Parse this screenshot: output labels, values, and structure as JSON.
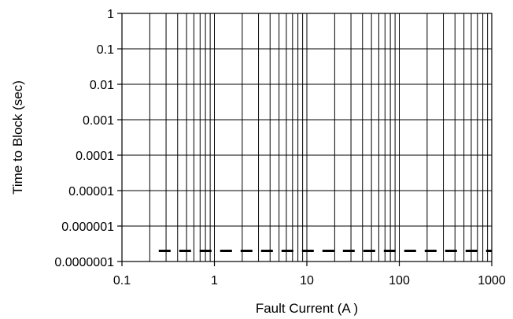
{
  "chart_data": {
    "type": "line",
    "xlabel": "Fault Current (A )",
    "ylabel": "Time to Block (sec)",
    "x_scale": "log",
    "y_scale": "log",
    "xlim": [
      0.1,
      1000
    ],
    "ylim": [
      1e-07,
      1
    ],
    "grid": true,
    "x_ticks": [
      "0.1",
      "1",
      "10",
      "100",
      "1000"
    ],
    "y_ticks": [
      "1",
      "0.1",
      "0.01",
      "0.001",
      "0.0001",
      "0.00001",
      "0.000001",
      "0.0000001"
    ],
    "series": [
      {
        "style": "dashed",
        "color": "#000000",
        "x": [
          0.25,
          1000
        ],
        "y": [
          2e-07,
          2e-07
        ]
      }
    ]
  }
}
